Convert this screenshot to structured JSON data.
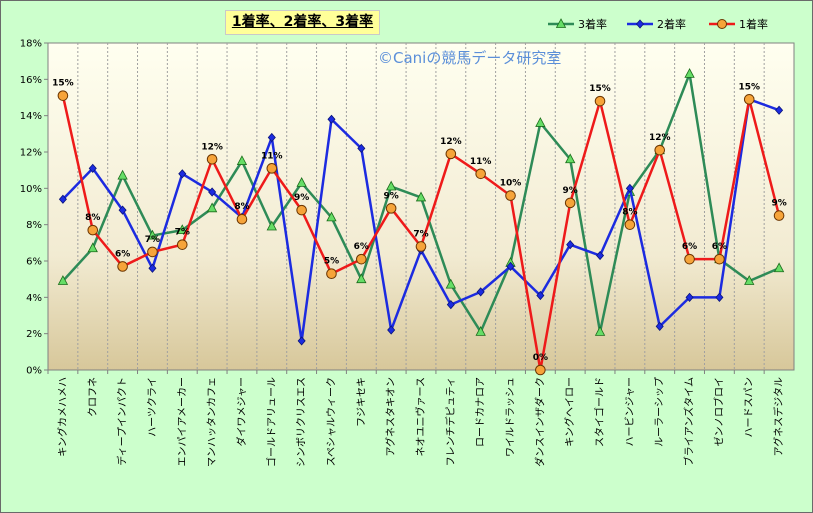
{
  "title": "1着率、2着率、3着率",
  "watermark": "©Caniの競馬データ研究室",
  "legend": [
    {
      "name": "3着率",
      "color": "#2e8b57",
      "marker": "triangle"
    },
    {
      "name": "2着率",
      "color": "#1c2be0",
      "marker": "diamond"
    },
    {
      "name": "1着率",
      "color": "#ee1a1a",
      "marker": "circle"
    }
  ],
  "chart_data": {
    "type": "line",
    "title": "1着率、2着率、3着率",
    "ylim": [
      0,
      18
    ],
    "yticks": [
      "0%",
      "2%",
      "4%",
      "6%",
      "8%",
      "10%",
      "12%",
      "14%",
      "16%",
      "18%"
    ],
    "grid": "vertical",
    "legend_position": "top-right",
    "categories": [
      "キングカメハメハ",
      "クロフネ",
      "ディープインパクト",
      "ハーツクライ",
      "エンパイアメーカー",
      "マンハッタンカフェ",
      "ダイワメジャー",
      "ゴールドアリュール",
      "シンボリクリスエス",
      "スペシャルウィーク",
      "フジキセキ",
      "アグネスタキオン",
      "ネオユニヴァース",
      "フレンチデピュティ",
      "ロードカナロア",
      "ワイルドラッシュ",
      "ダンスインザダーク",
      "キングヘイロー",
      "スタイゴールド",
      "ハービンジャー",
      "ルーラーシップ",
      "ブライアンズタイム",
      "ゼンノロブロイ",
      "ハードスパン",
      "アグネスデジタル"
    ],
    "series": [
      {
        "name": "3着率",
        "color": "#2e8b57",
        "values": [
          4.9,
          6.7,
          10.7,
          7.4,
          7.7,
          8.9,
          11.5,
          7.9,
          10.3,
          8.4,
          5.0,
          10.1,
          9.5,
          4.7,
          2.1,
          5.9,
          13.6,
          11.6,
          2.1,
          9.8,
          12.1,
          16.3,
          6.1,
          4.9,
          5.6
        ]
      },
      {
        "name": "2着率",
        "color": "#1c2be0",
        "values": [
          9.4,
          11.1,
          8.8,
          5.6,
          10.8,
          9.8,
          8.4,
          12.8,
          1.6,
          13.8,
          12.2,
          2.2,
          6.6,
          3.6,
          4.3,
          5.7,
          4.1,
          6.9,
          6.3,
          10.0,
          2.4,
          4.0,
          4.0,
          14.9,
          14.3
        ]
      },
      {
        "name": "1着率",
        "color": "#ee1a1a",
        "values": [
          15.1,
          7.7,
          5.7,
          6.5,
          6.9,
          11.6,
          8.3,
          11.1,
          8.8,
          5.3,
          6.1,
          8.9,
          6.8,
          11.9,
          10.8,
          9.6,
          0.0,
          9.2,
          14.8,
          8.0,
          12.1,
          6.1,
          6.1,
          14.9,
          8.5
        ]
      }
    ],
    "data_labels": [
      "15%",
      "8%",
      "6%",
      "7%",
      "7%",
      "12%",
      "8%",
      "11%",
      "9%",
      "5%",
      "6%",
      "9%",
      "7%",
      "12%",
      "11%",
      "10%",
      "0%",
      "9%",
      "15%",
      "8%",
      "12%",
      "6%",
      "6%",
      "15%",
      "9%"
    ]
  }
}
